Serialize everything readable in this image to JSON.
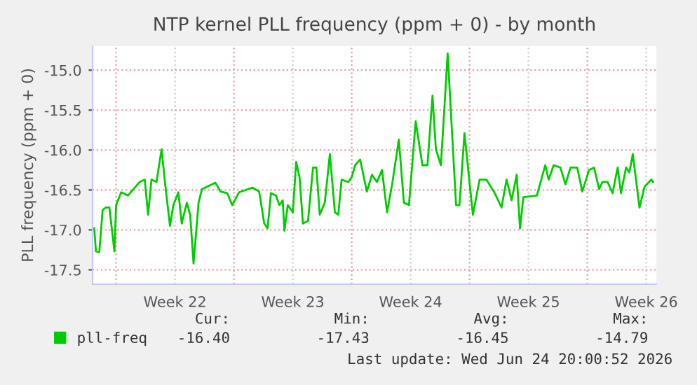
{
  "chart_data": {
    "type": "line",
    "title": "NTP kernel PLL frequency (ppm + 0) - by month",
    "ylabel": "PLL frequency (ppm + 0)",
    "x": [
      "2026-05-23T16:48",
      "2026-05-23T19:12",
      "2026-05-24T00:00",
      "2026-05-24T04:48",
      "2026-05-24T09:36",
      "2026-05-24T14:24",
      "2026-05-24T21:36",
      "2026-05-25T00:00",
      "2026-05-25T07:12",
      "2026-05-25T16:48",
      "2026-05-26T09:36",
      "2026-05-26T16:48",
      "2026-05-26T21:36",
      "2026-05-27T02:24",
      "2026-05-27T09:36",
      "2026-05-27T16:48",
      "2026-05-27T21:36",
      "2026-05-28T04:48",
      "2026-05-28T09:36",
      "2026-05-28T16:48",
      "2026-05-28T21:36",
      "2026-05-29T04:48",
      "2026-05-29T09:36",
      "2026-05-29T14:24",
      "2026-05-29T21:36",
      "2026-05-30T02:24",
      "2026-05-30T21:36",
      "2026-05-31T04:48",
      "2026-05-31T14:24",
      "2026-05-31T21:36",
      "2026-06-01T07:12",
      "2026-06-02T02:24",
      "2026-06-02T12:00",
      "2026-06-02T19:12",
      "2026-06-03T00:00",
      "2026-06-03T04:48",
      "2026-06-03T12:00",
      "2026-06-03T16:48",
      "2026-06-03T21:36",
      "2026-06-04T00:00",
      "2026-06-04T04:48",
      "2026-06-04T12:00",
      "2026-06-04T16:48",
      "2026-06-04T21:36",
      "2026-06-05T02:24",
      "2026-06-05T09:36",
      "2026-06-05T16:48",
      "2026-06-05T21:36",
      "2026-06-06T02:24",
      "2026-06-06T09:36",
      "2026-06-06T16:48",
      "2026-06-07T00:00",
      "2026-06-07T04:48",
      "2026-06-07T09:36",
      "2026-06-07T19:12",
      "2026-06-08T00:00",
      "2026-06-08T04:48",
      "2026-06-08T12:00",
      "2026-06-08T21:36",
      "2026-06-09T04:48",
      "2026-06-09T12:00",
      "2026-06-09T19:12",
      "2026-06-10T02:24",
      "2026-06-10T09:36",
      "2026-06-10T19:12",
      "2026-06-11T02:24",
      "2026-06-11T09:36",
      "2026-06-11T19:12",
      "2026-06-12T04:48",
      "2026-06-12T12:00",
      "2026-06-12T19:12",
      "2026-06-13T00:00",
      "2026-06-13T07:12",
      "2026-06-13T16:48",
      "2026-06-14T04:48",
      "2026-06-14T09:36",
      "2026-06-14T16:48",
      "2026-06-15T04:48",
      "2026-06-15T14:24",
      "2026-06-16T00:00",
      "2026-06-16T12:00",
      "2026-06-16T21:36",
      "2026-06-17T04:48",
      "2026-06-17T12:00",
      "2026-06-17T19:12",
      "2026-06-18T00:00",
      "2026-06-18T04:48",
      "2026-06-19T00:00",
      "2026-06-19T12:00",
      "2026-06-19T16:48",
      "2026-06-20T00:00",
      "2026-06-20T09:36",
      "2026-06-20T16:48",
      "2026-06-21T00:00",
      "2026-06-21T09:36",
      "2026-06-21T16:48",
      "2026-06-22T02:24",
      "2026-06-22T09:36",
      "2026-06-22T16:48",
      "2026-06-22T21:36",
      "2026-06-23T04:48",
      "2026-06-23T12:00",
      "2026-06-23T19:12",
      "2026-06-24T00:00",
      "2026-06-24T07:12",
      "2026-06-24T12:00",
      "2026-06-24T16:48",
      "2026-06-25T02:24",
      "2026-06-25T09:36",
      "2026-06-25T19:12",
      "2026-06-25T21:36"
    ],
    "series": [
      {
        "name": "pll-freq",
        "color": "#00cc00",
        "values": [
          -16.98,
          -17.27,
          -17.28,
          -16.75,
          -16.72,
          -16.72,
          -17.27,
          -16.69,
          -16.53,
          -16.57,
          -16.4,
          -16.37,
          -16.81,
          -16.37,
          -16.4,
          -15.99,
          -16.4,
          -16.95,
          -16.69,
          -16.53,
          -16.92,
          -16.66,
          -16.81,
          -17.42,
          -16.66,
          -16.49,
          -16.41,
          -16.52,
          -16.54,
          -16.69,
          -16.53,
          -16.47,
          -16.52,
          -16.92,
          -16.98,
          -16.54,
          -16.57,
          -16.69,
          -16.63,
          -17.01,
          -16.69,
          -16.78,
          -16.15,
          -16.34,
          -16.92,
          -16.89,
          -16.22,
          -16.22,
          -16.81,
          -16.66,
          -16.05,
          -16.78,
          -16.81,
          -16.37,
          -16.4,
          -16.34,
          -16.19,
          -16.12,
          -16.52,
          -16.31,
          -16.4,
          -16.25,
          -16.78,
          -16.43,
          -15.87,
          -16.66,
          -16.69,
          -15.64,
          -16.19,
          -16.19,
          -15.32,
          -15.99,
          -16.19,
          -14.79,
          -16.69,
          -16.69,
          -15.79,
          -16.81,
          -16.37,
          -16.37,
          -16.54,
          -16.72,
          -16.37,
          -16.63,
          -16.31,
          -16.98,
          -16.59,
          -16.57,
          -16.19,
          -16.37,
          -16.19,
          -16.22,
          -16.43,
          -16.22,
          -16.22,
          -16.52,
          -16.25,
          -16.22,
          -16.49,
          -16.4,
          -16.4,
          -16.54,
          -16.22,
          -16.54,
          -16.22,
          -16.28,
          -16.05,
          -16.72,
          -16.46,
          -16.37,
          -16.4
        ]
      }
    ],
    "xlim": [
      "2026-05-23T14:24",
      "2026-06-26T02:24"
    ],
    "xticks": [
      {
        "value": "2026-05-25",
        "label": null
      },
      {
        "value": "2026-05-28T12:00",
        "label": "Week 22"
      },
      {
        "value": "2026-06-01",
        "label": null
      },
      {
        "value": "2026-06-04T12:00",
        "label": "Week 23"
      },
      {
        "value": "2026-06-08",
        "label": null
      },
      {
        "value": "2026-06-11T12:00",
        "label": "Week 24"
      },
      {
        "value": "2026-06-15",
        "label": null
      },
      {
        "value": "2026-06-18T12:00",
        "label": "Week 25"
      },
      {
        "value": "2026-06-22",
        "label": null
      },
      {
        "value": "2026-06-25T12:00",
        "label": "Week 26"
      }
    ],
    "ylim": [
      -17.68,
      -14.7
    ],
    "yticks": [
      {
        "value": -15.0,
        "label": "-15.0"
      },
      {
        "value": -15.5,
        "label": "-15.5"
      },
      {
        "value": -16.0,
        "label": "-16.0"
      },
      {
        "value": -16.5,
        "label": "-16.5"
      },
      {
        "value": -17.0,
        "label": "-17.0"
      },
      {
        "value": -17.5,
        "label": "-17.5"
      }
    ],
    "grid": true,
    "legend": "bottom left",
    "line_style": "solid",
    "marker": "none",
    "annotations": [
      "Cur:",
      "Min:",
      "Avg:",
      "Max:",
      "-16.40",
      "-17.43",
      "-16.45",
      "-14.79",
      "Last update: Wed Jun 24 20:00:52 2026"
    ]
  }
}
